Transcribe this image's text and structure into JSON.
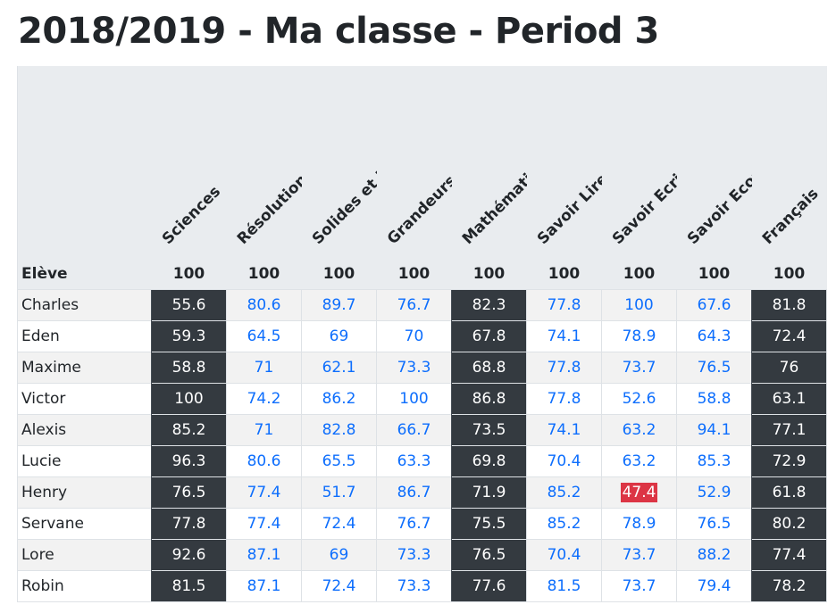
{
  "title": "2018/2019 - Ma classe - Period 3",
  "colors": {
    "dark": "#343a40",
    "link": "#0d6efd",
    "danger": "#dc3545",
    "header_bg": "#e9ecef"
  },
  "table": {
    "student_header": "Elève",
    "subjects": [
      {
        "name": "Sciences",
        "max": "100",
        "dark": true
      },
      {
        "name": "Résolution de problèmes",
        "max": "100",
        "dark": false
      },
      {
        "name": "Solides et Figures",
        "max": "100",
        "dark": false
      },
      {
        "name": "Grandeurs",
        "max": "100",
        "dark": false
      },
      {
        "name": "Mathématiques",
        "max": "100",
        "dark": true
      },
      {
        "name": "Savoir Lire",
        "max": "100",
        "dark": false
      },
      {
        "name": "Savoir Ecrire",
        "max": "100",
        "dark": false
      },
      {
        "name": "Savoir Ecouter",
        "max": "100",
        "dark": false
      },
      {
        "name": "Français",
        "max": "100",
        "dark": true
      }
    ],
    "rows": [
      {
        "name": "Charles",
        "scores": [
          "55.6",
          "80.6",
          "89.7",
          "76.7",
          "82.3",
          "77.8",
          "100",
          "67.6",
          "81.8"
        ]
      },
      {
        "name": "Eden",
        "scores": [
          "59.3",
          "64.5",
          "69",
          "70",
          "67.8",
          "74.1",
          "78.9",
          "64.3",
          "72.4"
        ]
      },
      {
        "name": "Maxime",
        "scores": [
          "58.8",
          "71",
          "62.1",
          "73.3",
          "68.8",
          "77.8",
          "73.7",
          "76.5",
          "76"
        ]
      },
      {
        "name": "Victor",
        "scores": [
          "100",
          "74.2",
          "86.2",
          "100",
          "86.8",
          "77.8",
          "52.6",
          "58.8",
          "63.1"
        ]
      },
      {
        "name": "Alexis",
        "scores": [
          "85.2",
          "71",
          "82.8",
          "66.7",
          "73.5",
          "74.1",
          "63.2",
          "94.1",
          "77.1"
        ]
      },
      {
        "name": "Lucie",
        "scores": [
          "96.3",
          "80.6",
          "65.5",
          "63.3",
          "69.8",
          "70.4",
          "63.2",
          "85.3",
          "72.9"
        ]
      },
      {
        "name": "Henry",
        "scores": [
          "76.5",
          "77.4",
          "51.7",
          "86.7",
          "71.9",
          "85.2",
          "47.4",
          "52.9",
          "61.8"
        ],
        "low_index": 6
      },
      {
        "name": "Servane",
        "scores": [
          "77.8",
          "77.4",
          "72.4",
          "76.7",
          "75.5",
          "85.2",
          "78.9",
          "76.5",
          "80.2"
        ]
      },
      {
        "name": "Lore",
        "scores": [
          "92.6",
          "87.1",
          "69",
          "73.3",
          "76.5",
          "70.4",
          "73.7",
          "88.2",
          "77.4"
        ]
      },
      {
        "name": "Robin",
        "scores": [
          "81.5",
          "87.1",
          "72.4",
          "73.3",
          "77.6",
          "81.5",
          "73.7",
          "79.4",
          "78.2"
        ]
      }
    ]
  }
}
